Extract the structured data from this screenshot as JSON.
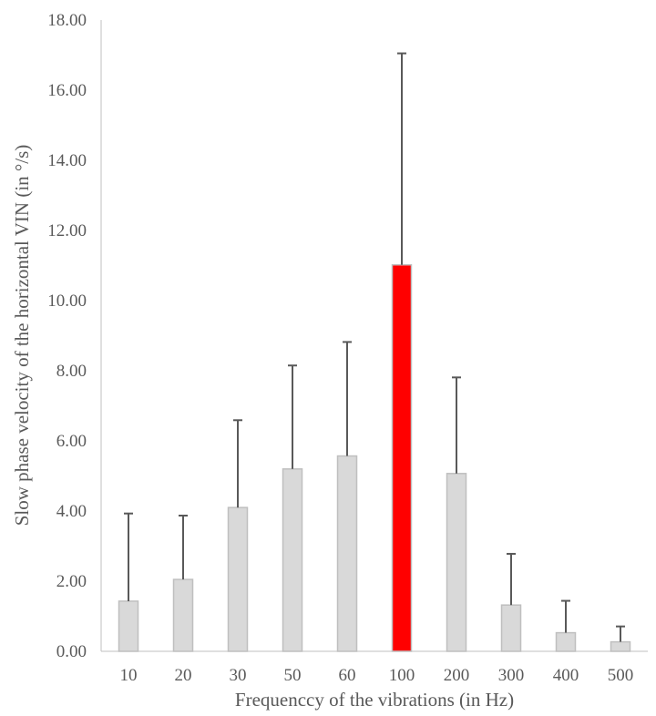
{
  "chart_data": {
    "type": "bar",
    "title": "",
    "xlabel": "Frequenccy of the vibrations (in Hz)",
    "ylabel": "Slow phase velocity of the horizontal VIN (in °/s)",
    "categories": [
      "10",
      "20",
      "30",
      "50",
      "60",
      "100",
      "200",
      "300",
      "400",
      "500"
    ],
    "series": [
      {
        "values": [
          1.43,
          2.05,
          4.1,
          5.2,
          5.57,
          11.02,
          5.07,
          1.32,
          0.53,
          0.27
        ],
        "error_plus": [
          2.5,
          1.82,
          2.49,
          2.95,
          3.25,
          6.03,
          2.74,
          1.46,
          0.91,
          0.44
        ]
      }
    ],
    "ylim": [
      0,
      18
    ],
    "y_ticks": [
      "0.00",
      "2.00",
      "4.00",
      "6.00",
      "8.00",
      "10.00",
      "12.00",
      "14.00",
      "16.00",
      "18.00"
    ],
    "grid": false,
    "legend": "none",
    "colors": {
      "bar": "#d9d9d9",
      "bar_border": "#bfbfbf",
      "highlight_bar": "#ff0000",
      "highlight_category": "100",
      "error_bar": "#595959",
      "axis": "#bfbfbf"
    }
  }
}
